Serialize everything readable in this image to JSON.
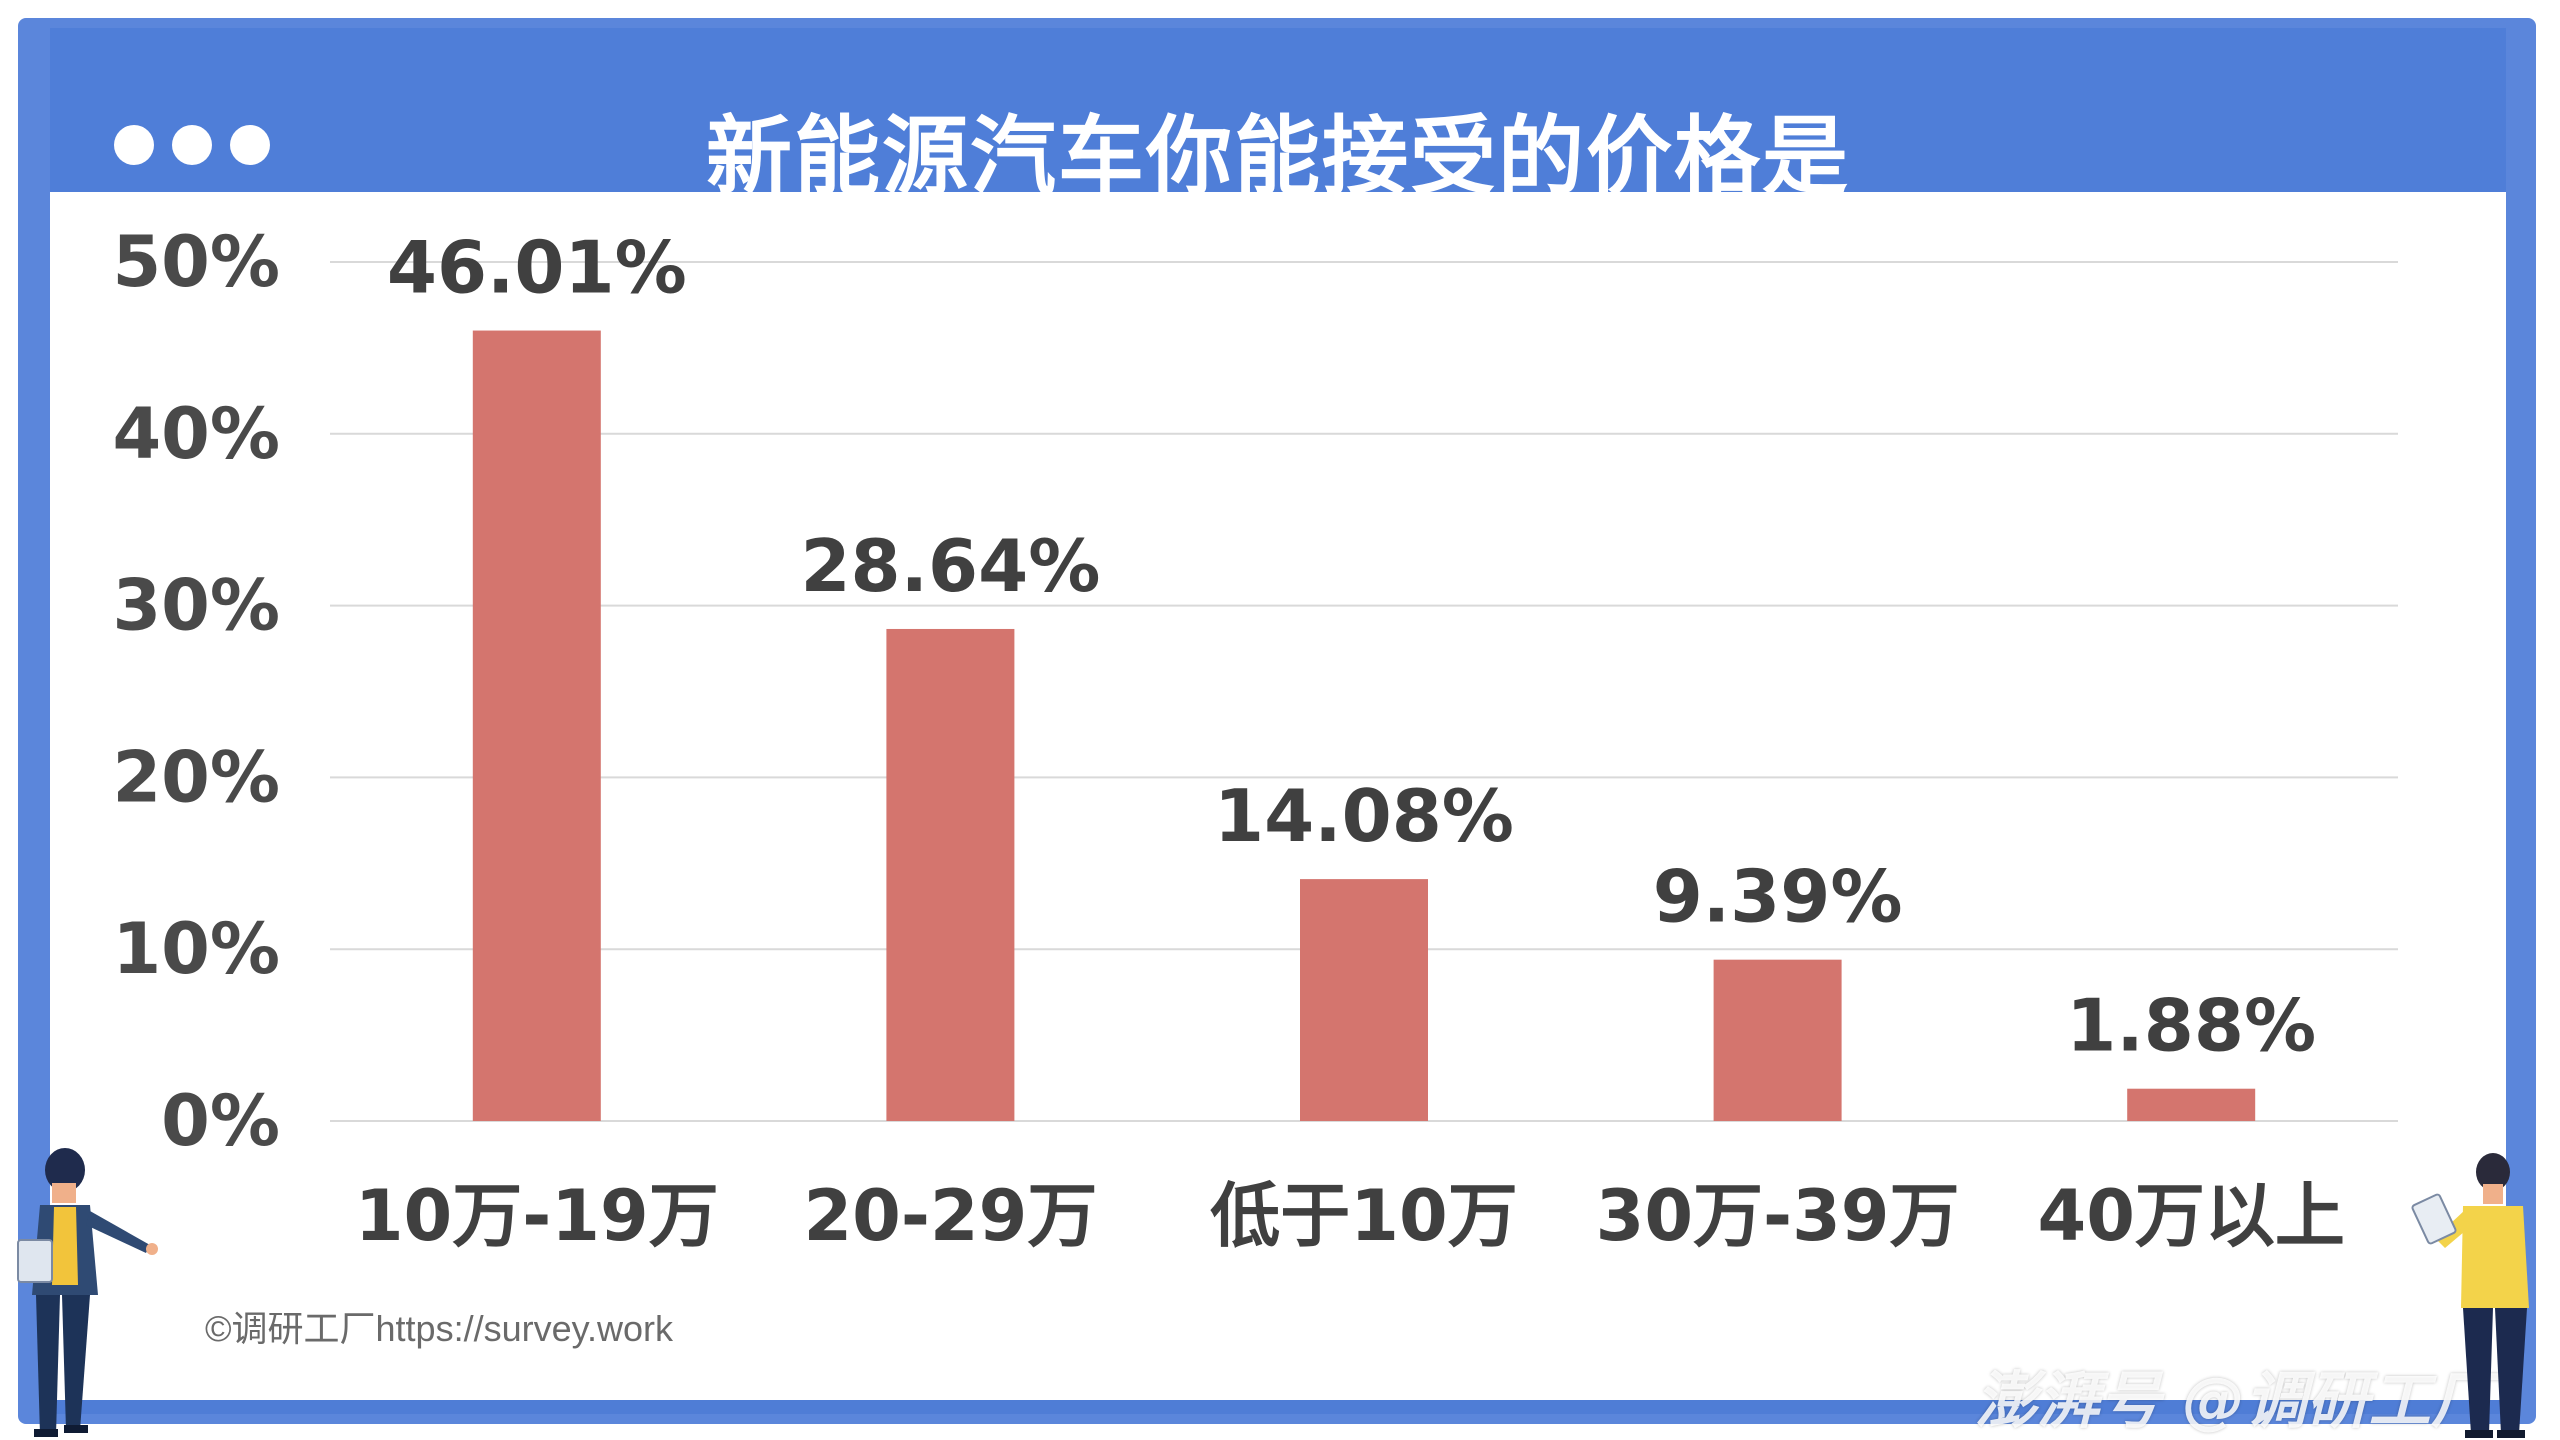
{
  "header": {
    "title": "新能源汽车你能接受的价格是",
    "dots": 3
  },
  "chart_data": {
    "type": "bar",
    "title": "新能源汽车你能接受的价格是",
    "categories": [
      "10万-19万",
      "20-29万",
      "低于10万",
      "30万-39万",
      "40万以上"
    ],
    "values": [
      46.01,
      28.64,
      14.08,
      9.39,
      1.88
    ],
    "value_labels": [
      "46.01%",
      "28.64%",
      "14.08%",
      "9.39%",
      "1.88%"
    ],
    "ylim": [
      0,
      50
    ],
    "yticks": [
      "0%",
      "10%",
      "20%",
      "30%",
      "40%",
      "50%"
    ],
    "ytick_values": [
      0,
      10,
      20,
      30,
      40,
      50
    ],
    "grid": true,
    "bar_color": "#d4756e"
  },
  "footer": {
    "credit": "©调研工厂https://survey.work",
    "watermark": "澎湃号 @调研工厂"
  },
  "colors": {
    "frame": "#5b86db",
    "header": "#4f7ed8",
    "bar": "#d4756e",
    "text": "#404040",
    "grid": "#d9d9d9"
  }
}
